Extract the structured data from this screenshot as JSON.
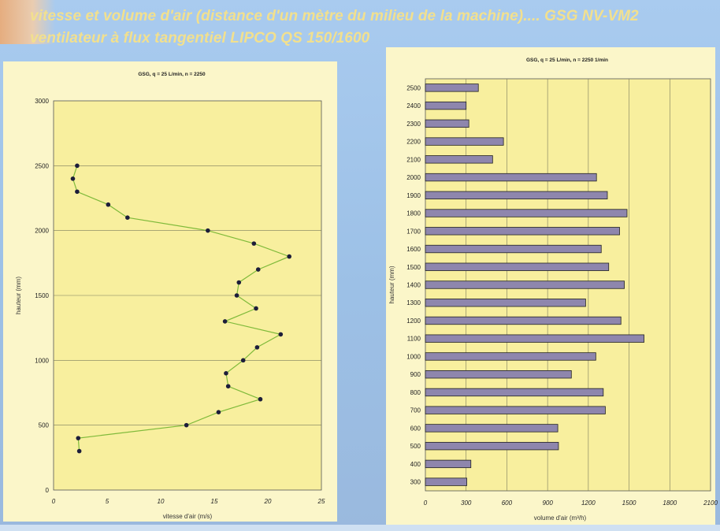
{
  "slide": {
    "title_line1": "vitesse et volume d'air (distance d'un mètre du milieu de la machine).... GSG NV-VM2",
    "title_line2": "ventilateur à flux tangentiel LIPCO QS 150/1600",
    "title_color": "#f2e08e",
    "background_color": "#9fc3e8"
  },
  "chart_data": [
    {
      "type": "line",
      "title": "GSG,  q = 25 L/min, n = 2250",
      "xlabel": "vitesse d'air (m/s)",
      "ylabel": "hauteur (mm)",
      "xlim": [
        0,
        25
      ],
      "ylim": [
        0,
        3000
      ],
      "x_ticks": [
        "0",
        "5",
        "10",
        "15",
        "20",
        "25"
      ],
      "y_ticks": [
        "0",
        "500",
        "1000",
        "1500",
        "2000",
        "2500",
        "3000"
      ],
      "grid": "horizontal",
      "plot_background": "#f8ef9e",
      "line_color": "#7fba3a",
      "marker_color": "#1d1d3a",
      "series": [
        {
          "points": [
            {
              "x": 2.4,
              "y": 300
            },
            {
              "x": 2.3,
              "y": 400
            },
            {
              "x": 12.4,
              "y": 500
            },
            {
              "x": 15.4,
              "y": 600
            },
            {
              "x": 19.3,
              "y": 700
            },
            {
              "x": 16.3,
              "y": 800
            },
            {
              "x": 16.1,
              "y": 900
            },
            {
              "x": 17.7,
              "y": 1000
            },
            {
              "x": 19.0,
              "y": 1100
            },
            {
              "x": 21.2,
              "y": 1200
            },
            {
              "x": 16.0,
              "y": 1300
            },
            {
              "x": 18.9,
              "y": 1400
            },
            {
              "x": 17.1,
              "y": 1500
            },
            {
              "x": 17.3,
              "y": 1600
            },
            {
              "x": 19.1,
              "y": 1700
            },
            {
              "x": 22.0,
              "y": 1800
            },
            {
              "x": 18.7,
              "y": 1900
            },
            {
              "x": 14.4,
              "y": 2000
            },
            {
              "x": 6.9,
              "y": 2100
            },
            {
              "x": 5.1,
              "y": 2200
            },
            {
              "x": 2.2,
              "y": 2300
            },
            {
              "x": 1.8,
              "y": 2400
            },
            {
              "x": 2.2,
              "y": 2500
            }
          ]
        }
      ]
    },
    {
      "type": "bar",
      "orientation": "horizontal",
      "title": "GSG,  q = 25 L/min, n = 2250 1/min",
      "xlabel": "volume d'air (m³/h)",
      "ylabel": "hauteur (mm)",
      "xlim": [
        0,
        2100
      ],
      "x_ticks": [
        "0",
        "300",
        "600",
        "900",
        "1200",
        "1500",
        "1800",
        "2100"
      ],
      "grid": "vertical",
      "plot_background": "#f8ef9e",
      "bar_color": "#8e86ad",
      "categories": [
        "300",
        "400",
        "500",
        "600",
        "700",
        "800",
        "900",
        "1000",
        "1100",
        "1200",
        "1300",
        "1400",
        "1500",
        "1600",
        "1700",
        "1800",
        "1900",
        "2000",
        "2100",
        "2200",
        "2300",
        "2400",
        "2500"
      ],
      "values": [
        305,
        335,
        980,
        975,
        1325,
        1310,
        1075,
        1255,
        1610,
        1440,
        1180,
        1465,
        1350,
        1295,
        1430,
        1485,
        1340,
        1260,
        495,
        575,
        320,
        300,
        390
      ]
    }
  ]
}
